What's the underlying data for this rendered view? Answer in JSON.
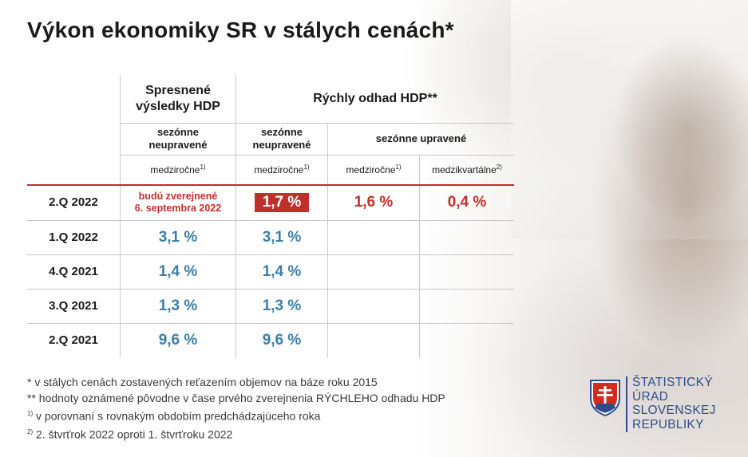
{
  "title": "Výkon ekonomiky SR v stálych cenách*",
  "table": {
    "header": {
      "group_refined": "Spresnené výsledky HDP",
      "group_flash": "Rýchly odhad HDP**",
      "refined_sub": "sezónne neupravené",
      "flash_nsa_sub": "sezónne neupravené",
      "flash_sa_sub": "sezónne upravené",
      "col1_measure": "medziročne",
      "col2_measure": "medziročne",
      "col3_measure": "medziročne",
      "col4_measure": "medzikvartálne",
      "note_yoy": "1)",
      "note_qoq": "2)"
    },
    "rows": [
      {
        "quarter": "2.Q 2022",
        "refined_line1": "budú zverejnené",
        "refined_line2": "6. septembra 2022",
        "flash_nsa": "1,7 %",
        "flash_sa_yoy": "1,6 %",
        "flash_sa_qoq": "0,4 %"
      },
      {
        "quarter": "1.Q 2022",
        "refined": "3,1 %",
        "flash_nsa": "3,1 %"
      },
      {
        "quarter": "4.Q 2021",
        "refined": "1,4 %",
        "flash_nsa": "1,4 %"
      },
      {
        "quarter": "3.Q 2021",
        "refined": "1,3 %",
        "flash_nsa": "1,3 %"
      },
      {
        "quarter": "2.Q 2021",
        "refined": "9,6 %",
        "flash_nsa": "9,6 %"
      }
    ]
  },
  "footnotes": {
    "f1": "* v stálych cenách zostavených reťazením objemov na báze roku 2015",
    "f2": "** hodnoty oznámené pôvodne v čase prvého zverejnenia RÝCHLEHO odhadu HDP",
    "f3_mark": "1)",
    "f3": " v porovnaní s rovnakým obdobím predchádzajúceho roka",
    "f4_mark": "2)",
    "f4": " 2. štvrťrok 2022 oproti 1. štvrťroku 2022"
  },
  "logo": {
    "line1": "ŠTATISTICKÝ",
    "line2": "ÚRAD",
    "line3": "SLOVENSKEJ",
    "line4": "REPUBLIKY"
  },
  "colors": {
    "accent_red": "#c0302a",
    "value_blue": "#3a7fa8",
    "logo_blue": "#2c4e8a"
  }
}
